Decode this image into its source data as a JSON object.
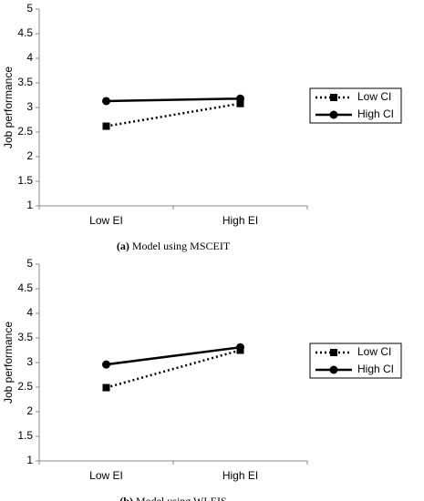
{
  "chart_data": [
    {
      "type": "line",
      "y_label": "Job performance",
      "categories": [
        "Low EI",
        "High EI"
      ],
      "series": [
        {
          "name": "Low CI",
          "color": "#000000",
          "line_style": "dotted",
          "marker": "square",
          "values": [
            2.62,
            3.08
          ]
        },
        {
          "name": "High CI",
          "color": "#000000",
          "line_style": "solid",
          "marker": "circle",
          "values": [
            3.13,
            3.18
          ]
        }
      ],
      "ylim": [
        1,
        5
      ],
      "yticks": [
        1,
        1.5,
        2,
        2.5,
        3,
        3.5,
        4,
        4.5,
        5
      ],
      "grid": false,
      "legend": "right",
      "caption_label": "(a)",
      "caption": "Model using MSCEIT"
    },
    {
      "type": "line",
      "y_label": "Job performance",
      "categories": [
        "Low EI",
        "High EI"
      ],
      "series": [
        {
          "name": "Low CI",
          "color": "#000000",
          "line_style": "dotted",
          "marker": "square",
          "values": [
            2.49,
            3.25
          ]
        },
        {
          "name": "High CI",
          "color": "#000000",
          "line_style": "solid",
          "marker": "circle",
          "values": [
            2.96,
            3.31
          ]
        }
      ],
      "ylim": [
        1,
        5
      ],
      "yticks": [
        1,
        1.5,
        2,
        2.5,
        3,
        3.5,
        4,
        4.5,
        5
      ],
      "grid": false,
      "legend": "right",
      "caption_label": "(b)",
      "caption": "Model using WLEIS"
    }
  ]
}
